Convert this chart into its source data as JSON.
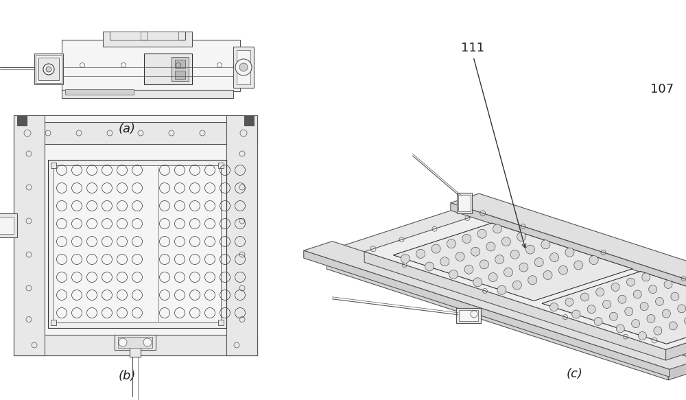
{
  "background_color": "#ffffff",
  "figure_width": 10.0,
  "figure_height": 5.83,
  "dpi": 100,
  "label_a": "(a)",
  "label_b": "(b)",
  "label_c": "(c)",
  "label_111": "111",
  "label_107": "107",
  "line_color": "#555555",
  "line_color_dark": "#333333",
  "fill_light": "#f5f5f5",
  "fill_mid": "#e8e8e8",
  "fill_dark": "#d0d0d0",
  "fill_darker": "#b8b8b8",
  "text_color": "#222222",
  "font_size_labels": 13,
  "font_size_numbers": 13
}
